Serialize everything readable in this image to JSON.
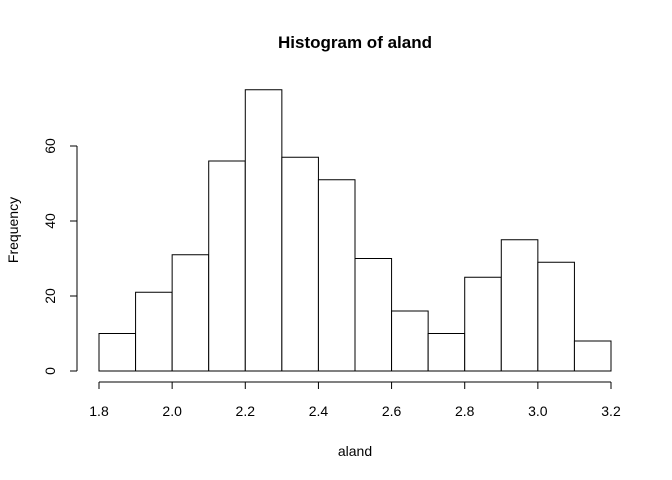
{
  "chart_data": {
    "type": "bar",
    "title": "Histogram of aland",
    "xlabel": "aland",
    "ylabel": "Frequency",
    "bin_edges": [
      1.8,
      1.9,
      2.0,
      2.1,
      2.2,
      2.3,
      2.4,
      2.5,
      2.6,
      2.7,
      2.8,
      2.9,
      3.0,
      3.1,
      3.2
    ],
    "values": [
      10,
      21,
      31,
      56,
      75,
      57,
      51,
      30,
      16,
      10,
      25,
      35,
      29,
      8
    ],
    "xlim": [
      1.8,
      3.2
    ],
    "ylim": [
      0,
      75
    ],
    "x_ticks": [
      "1.8",
      "2.0",
      "2.2",
      "2.4",
      "2.6",
      "2.8",
      "3.0",
      "3.2"
    ],
    "y_ticks": [
      "0",
      "20",
      "40",
      "60"
    ],
    "grid": false,
    "legend": "none"
  }
}
